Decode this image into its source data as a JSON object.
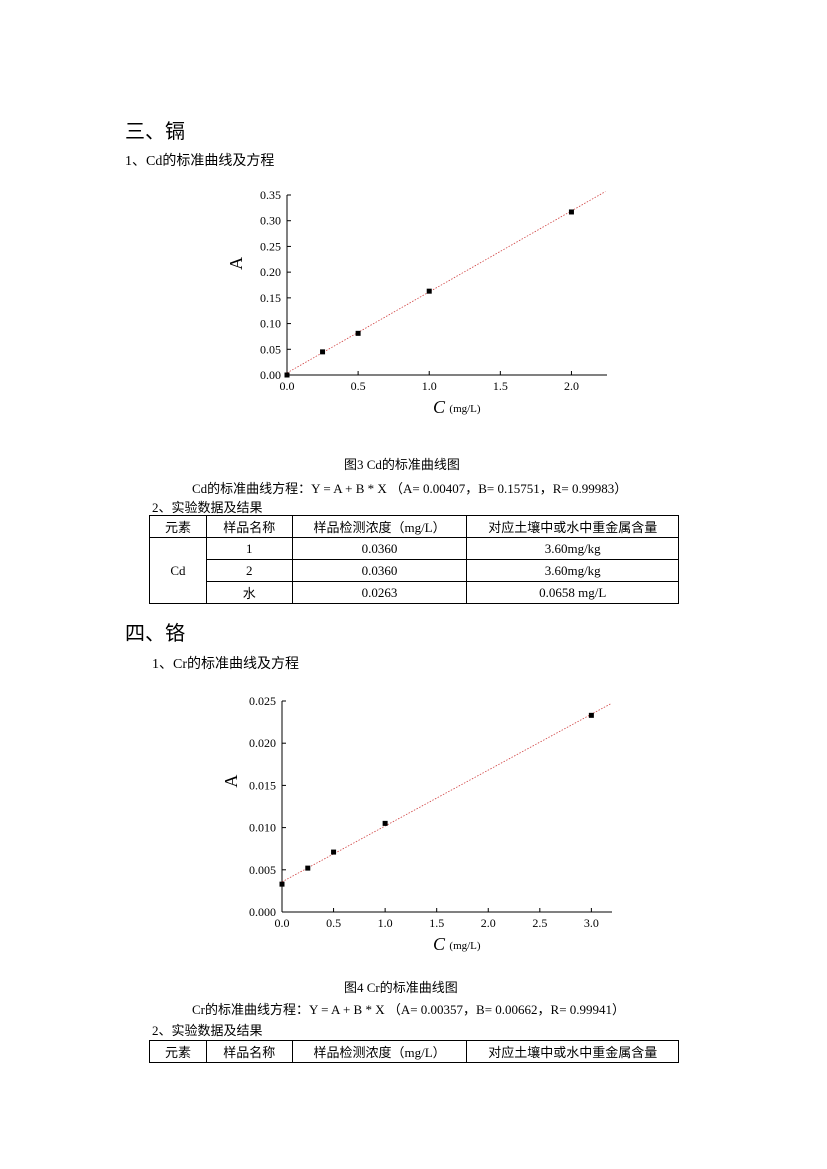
{
  "section3": {
    "heading": "三、镉",
    "sub1": "1、Cd的标准曲线及方程",
    "figure_caption": "图3  Cd的标准曲线图",
    "equation": "Cd的标准曲线方程：Y = A + B * X     （A= 0.00407，B= 0.15751，R= 0.99983）",
    "sub2": "2、实验数据及结果",
    "table": {
      "headers": [
        "元素",
        "样品名称",
        "样品检测浓度（mg/L）",
        "对应土壤中或水中重金属含量"
      ],
      "element": "Cd",
      "rows": [
        {
          "name": "1",
          "conc": "0.0360",
          "content": "3.60mg/kg"
        },
        {
          "name": "2",
          "conc": "0.0360",
          "content": "3.60mg/kg"
        },
        {
          "name": "水",
          "conc": "0.0263",
          "content": "0.0658 mg/L"
        }
      ]
    }
  },
  "section4": {
    "heading": "四、铬",
    "sub1": "1、Cr的标准曲线及方程",
    "figure_caption": "图4  Cr的标准曲线图",
    "equation": "Cr的标准曲线方程：Y = A + B * X     （A= 0.00357，B= 0.00662，R= 0.99941）",
    "sub2": "2、实验数据及结果",
    "table": {
      "headers": [
        "元素",
        "样品名称",
        "样品检测浓度（mg/L）",
        "对应土壤中或水中重金属含量"
      ]
    }
  },
  "chart_data": [
    {
      "type": "scatter",
      "title": "",
      "xlabel": "C",
      "xlabel_unit": "(mg/L)",
      "ylabel": "A",
      "xlim": [
        0,
        2.25
      ],
      "ylim": [
        0,
        0.35
      ],
      "x_ticks": [
        "0.0",
        "0.5",
        "1.0",
        "1.5",
        "2.0"
      ],
      "y_ticks": [
        "0.00",
        "0.05",
        "0.10",
        "0.15",
        "0.20",
        "0.25",
        "0.30",
        "0.35"
      ],
      "points": [
        {
          "x": 0,
          "y": 0.0
        },
        {
          "x": 0.25,
          "y": 0.045
        },
        {
          "x": 0.5,
          "y": 0.081
        },
        {
          "x": 1.0,
          "y": 0.163
        },
        {
          "x": 2.0,
          "y": 0.317
        }
      ],
      "fit": {
        "intercept": 0.00407,
        "slope": 0.15751
      },
      "grid": false
    },
    {
      "type": "scatter",
      "title": "",
      "xlabel": "C",
      "xlabel_unit": "(mg/L)",
      "ylabel": "A",
      "xlim": [
        0,
        3.2
      ],
      "ylim": [
        0,
        0.025
      ],
      "x_ticks": [
        "0.0",
        "0.5",
        "1.0",
        "1.5",
        "2.0",
        "2.5",
        "3.0"
      ],
      "y_ticks": [
        "0.000",
        "0.005",
        "0.010",
        "0.015",
        "0.020",
        "0.025"
      ],
      "points": [
        {
          "x": 0,
          "y": 0.0033
        },
        {
          "x": 0.25,
          "y": 0.0052
        },
        {
          "x": 0.5,
          "y": 0.0071
        },
        {
          "x": 1.0,
          "y": 0.0105
        },
        {
          "x": 3.0,
          "y": 0.0233
        }
      ],
      "fit": {
        "intercept": 0.00357,
        "slope": 0.00662
      },
      "grid": false
    }
  ]
}
